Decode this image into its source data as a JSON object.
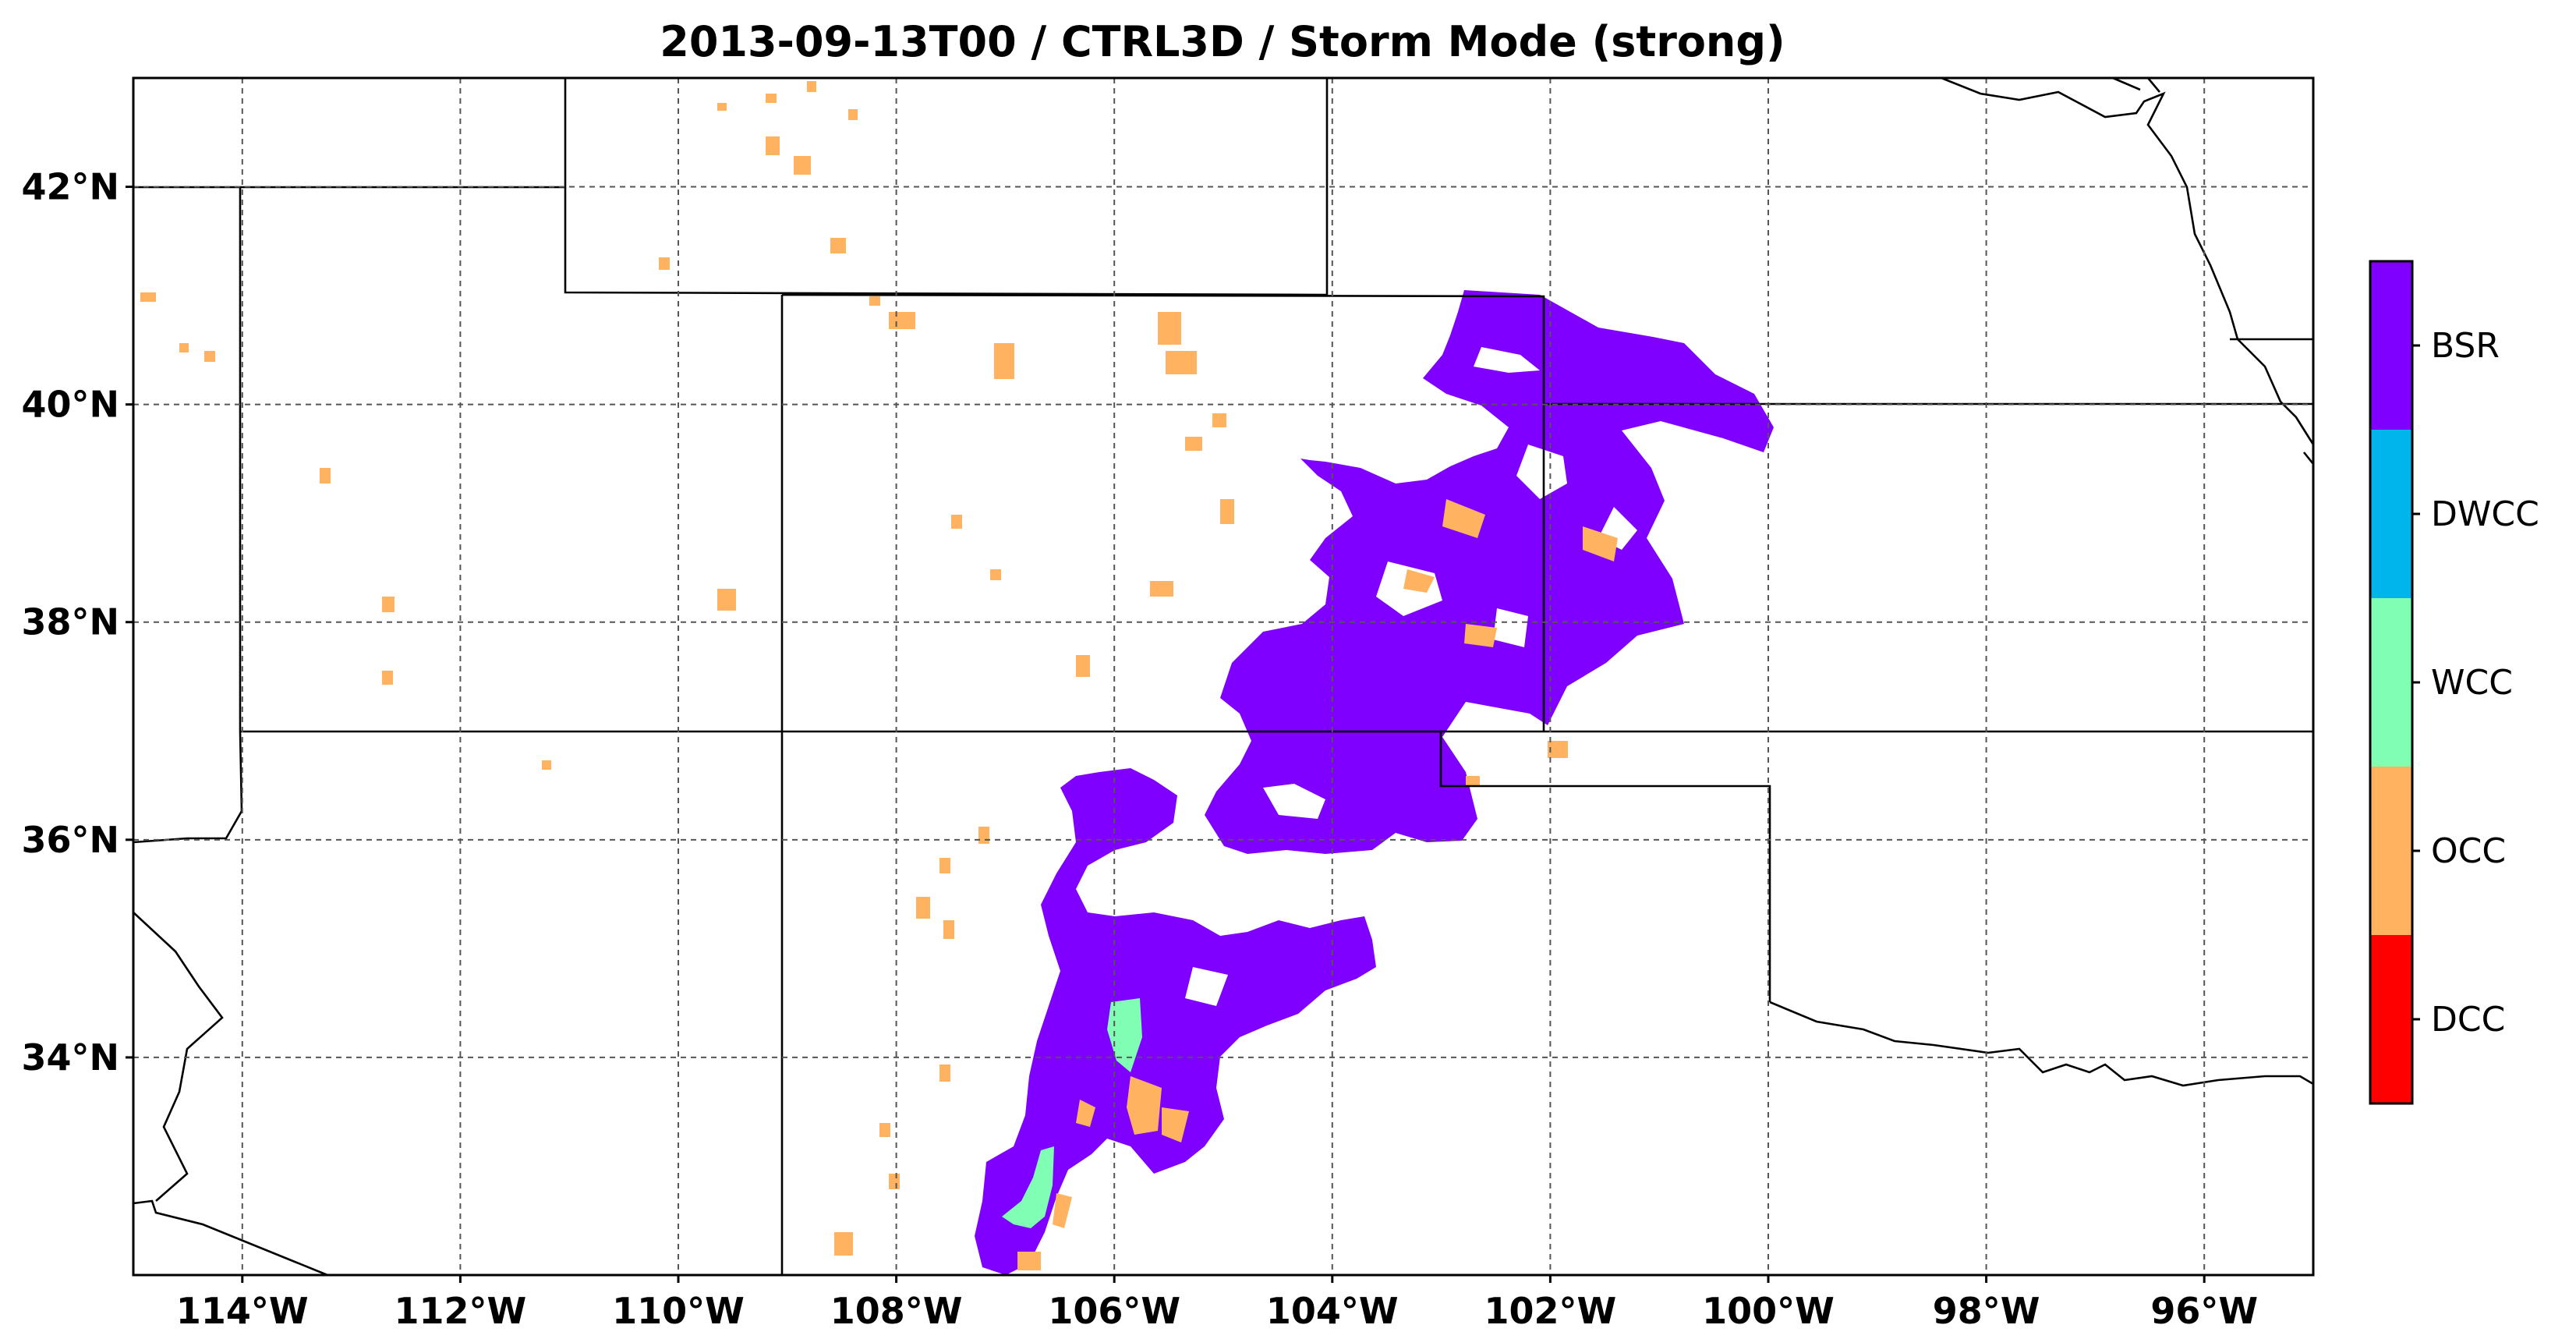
{
  "title": "2013-09-13T00 / CTRL3D / Storm Mode (strong)",
  "map": {
    "lon_range": [
      -115,
      -95
    ],
    "lat_range": [
      32,
      43
    ],
    "x_ticks": [
      {
        "value": -114,
        "label": "114°W"
      },
      {
        "value": -112,
        "label": "112°W"
      },
      {
        "value": -110,
        "label": "110°W"
      },
      {
        "value": -108,
        "label": "108°W"
      },
      {
        "value": -106,
        "label": "106°W"
      },
      {
        "value": -104,
        "label": "104°W"
      },
      {
        "value": -102,
        "label": "102°W"
      },
      {
        "value": -100,
        "label": "100°W"
      },
      {
        "value": -98,
        "label": "98°W"
      },
      {
        "value": -96,
        "label": "96°W"
      }
    ],
    "y_ticks": [
      {
        "value": 34,
        "label": "34°N"
      },
      {
        "value": 36,
        "label": "36°N"
      },
      {
        "value": 38,
        "label": "38°N"
      },
      {
        "value": 40,
        "label": "40°N"
      },
      {
        "value": 42,
        "label": "42°N"
      }
    ],
    "gridlines": true
  },
  "colorbar": {
    "categories": [
      {
        "label": "BSR",
        "color": "#8000ff"
      },
      {
        "label": "DWCC",
        "color": "#00b5eb"
      },
      {
        "label": "WCC",
        "color": "#80ffb4"
      },
      {
        "label": "OCC",
        "color": "#ffb360"
      },
      {
        "label": "DCC",
        "color": "#ff0000"
      }
    ]
  }
}
